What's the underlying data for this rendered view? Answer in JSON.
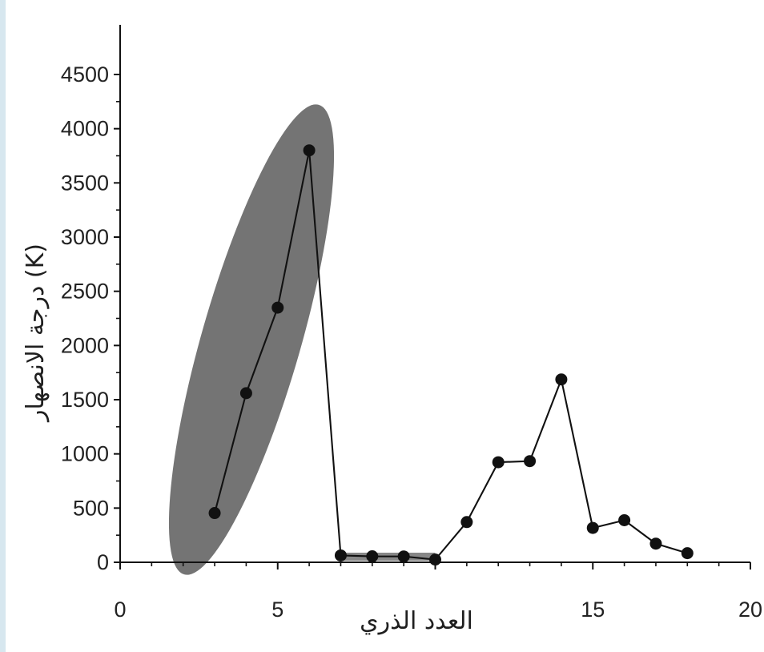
{
  "chart_data": {
    "type": "line",
    "title": "",
    "xlabel": "العدد الذري",
    "ylabel": "درجة الانصهار (K)",
    "xlim": [
      0,
      20
    ],
    "ylim": [
      0,
      4500
    ],
    "x_ticks": [
      0,
      5,
      15,
      20
    ],
    "y_ticks": [
      0,
      500,
      1000,
      1500,
      2000,
      2500,
      3000,
      3500,
      4000,
      4500
    ],
    "x_tick_labels": [
      "0",
      "5",
      "15",
      "20"
    ],
    "y_tick_labels": [
      "0",
      "500",
      "1000",
      "1500",
      "2000",
      "2500",
      "3000",
      "3500",
      "4000",
      "4500"
    ],
    "series": [
      {
        "x": [
          3,
          4,
          5,
          6,
          7,
          8,
          9,
          10,
          11,
          12,
          13,
          14,
          15,
          16,
          17,
          18
        ],
        "y": [
          454,
          1560,
          2349,
          3800,
          63,
          55,
          54,
          25,
          371,
          923,
          933,
          1687,
          317,
          388,
          172,
          84
        ],
        "color": "#111111"
      }
    ],
    "highlights": [
      {
        "shape": "ellipse",
        "covers_x": [
          3,
          6
        ],
        "color": "#6d6d6d"
      },
      {
        "shape": "band",
        "covers_x": [
          7,
          10
        ],
        "color": "#7a7a7a"
      }
    ],
    "grid": false,
    "legend": "none"
  }
}
